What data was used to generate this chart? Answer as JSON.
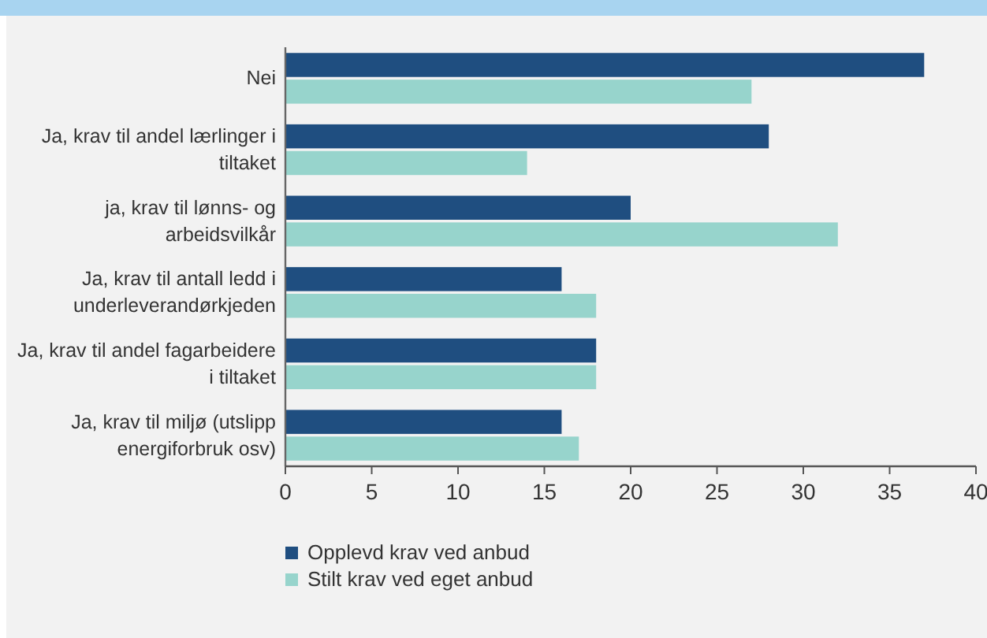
{
  "chart_data": {
    "type": "bar",
    "orientation": "horizontal",
    "categories": [
      "Nei",
      "Ja, krav til andel lærlinger i tiltaket",
      "ja, krav til lønns- og arbeidsvilkår",
      "Ja, krav til antall ledd i underleverandørkjeden",
      "Ja, krav til andel fagarbeidere i tiltaket",
      "Ja, krav til miljø (utslipp energiforbruk osv)"
    ],
    "series": [
      {
        "name": "Opplevd krav ved anbud",
        "color": "#1f4e80",
        "values": [
          37,
          28,
          20,
          16,
          18,
          16
        ]
      },
      {
        "name": "Stilt krav ved eget anbud",
        "color": "#97d4cc",
        "values": [
          27,
          14,
          32,
          18,
          18,
          17
        ]
      }
    ],
    "xlim": [
      0,
      40
    ],
    "xticks": [
      0,
      5,
      10,
      15,
      20,
      25,
      30,
      35,
      40
    ],
    "grid": false,
    "legend": "bottom"
  }
}
